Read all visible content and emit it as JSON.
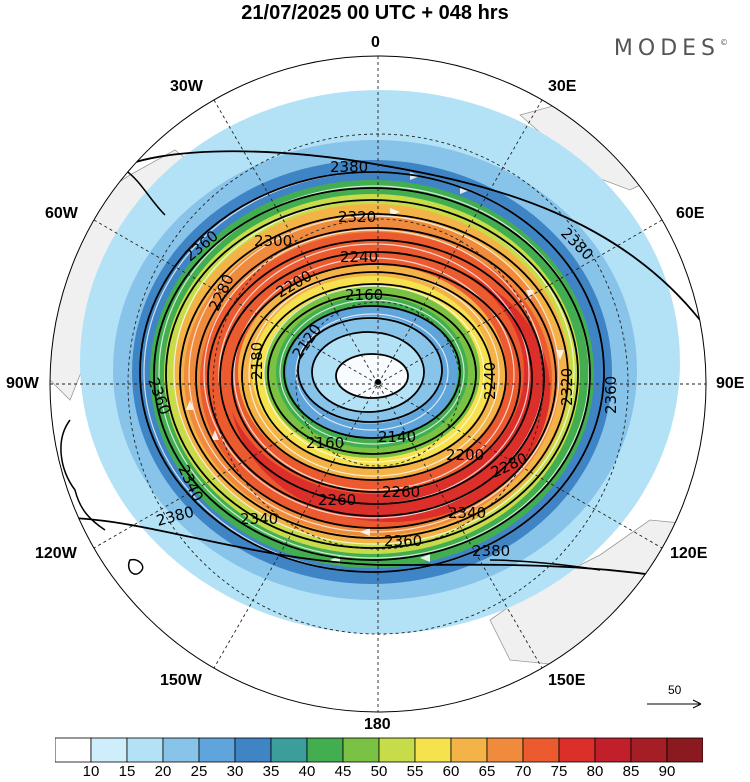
{
  "header": {
    "title": "21/07/2025  00 UTC  + 048 hrs",
    "brand": "MODES",
    "brand_mark": "©"
  },
  "map": {
    "projection": "south-polar-stereographic",
    "longitude_labels": [
      {
        "id": "lon-0",
        "text": "0"
      },
      {
        "id": "lon-30e",
        "text": "30E"
      },
      {
        "id": "lon-60e",
        "text": "60E"
      },
      {
        "id": "lon-90e",
        "text": "90E"
      },
      {
        "id": "lon-120e",
        "text": "120E"
      },
      {
        "id": "lon-150e",
        "text": "150E"
      },
      {
        "id": "lon-180",
        "text": "180"
      },
      {
        "id": "lon-150w",
        "text": "150W"
      },
      {
        "id": "lon-120w",
        "text": "120W"
      },
      {
        "id": "lon-90w",
        "text": "90W"
      },
      {
        "id": "lon-60w",
        "text": "60W"
      },
      {
        "id": "lon-30w",
        "text": "30W"
      }
    ],
    "contour_labels": [
      "2380",
      "2320",
      "2300",
      "2360",
      "2240",
      "2380",
      "2200",
      "2160",
      "2280",
      "2120",
      "2180",
      "2360",
      "2340",
      "2240",
      "2320",
      "2360",
      "2160",
      "2140",
      "2200",
      "2280",
      "2340",
      "2260",
      "2380",
      "2340",
      "2360",
      "2380",
      "2260"
    ],
    "wind_reference_vector": "50"
  },
  "colorbar": {
    "ticks": [
      "10",
      "15",
      "20",
      "25",
      "30",
      "35",
      "40",
      "45",
      "50",
      "55",
      "60",
      "65",
      "70",
      "75",
      "80",
      "85",
      "90"
    ],
    "colors": [
      "#ffffff",
      "#cfeefb",
      "#b3e2f7",
      "#88c4ea",
      "#5fa4db",
      "#3f85c6",
      "#3b9e9a",
      "#43ae4f",
      "#7ac243",
      "#c8dc4a",
      "#f6e14e",
      "#f4b347",
      "#f08a3c",
      "#eb5b2f",
      "#dc2f2a",
      "#c1202a",
      "#a51e25",
      "#8a1a1f"
    ]
  }
}
